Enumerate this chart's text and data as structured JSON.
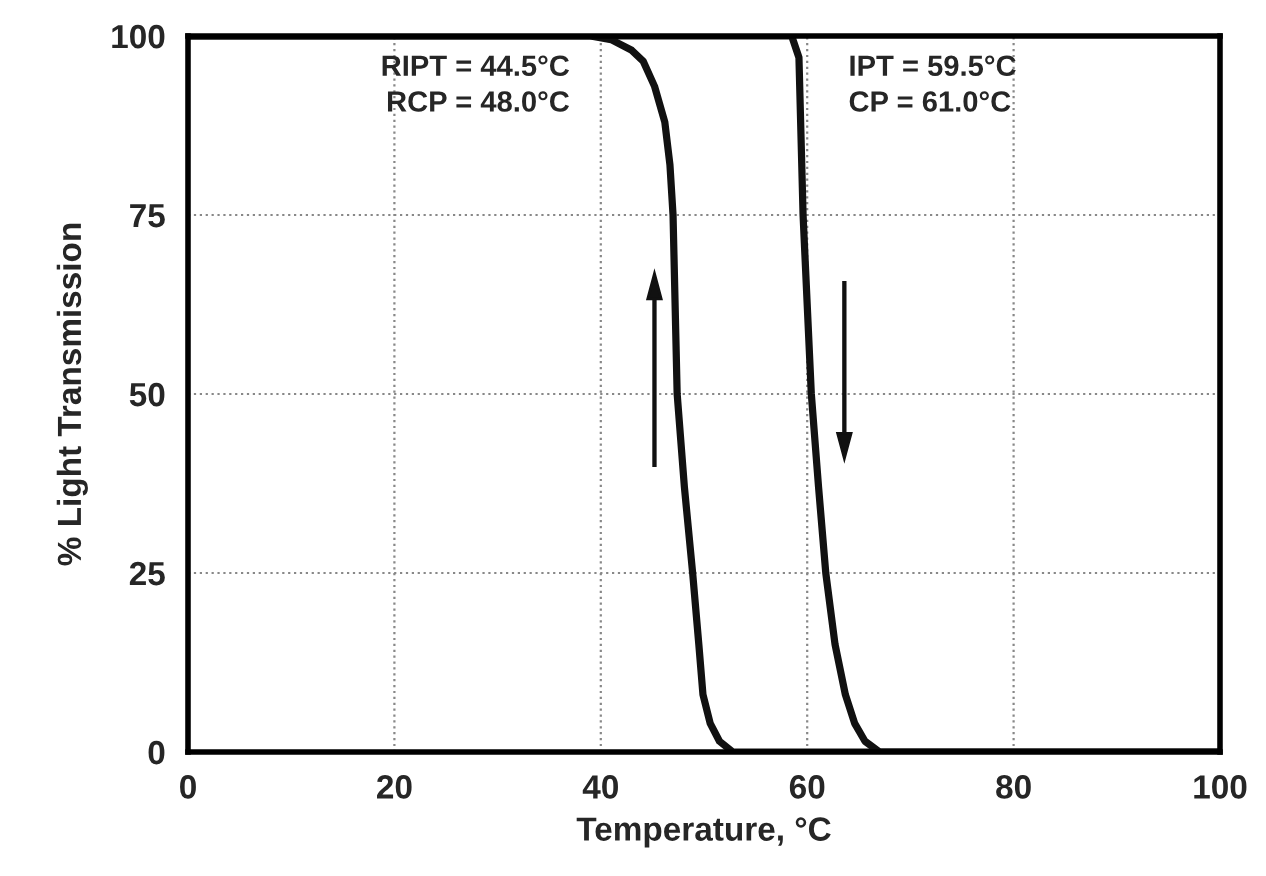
{
  "chart_data": {
    "type": "line",
    "xlabel": "Temperature, °C",
    "ylabel": "% Light Transmission",
    "series": [
      {
        "color": "#111111",
        "x": [
          0,
          39,
          41,
          43,
          44.1,
          45.2,
          46.2,
          46.7,
          47,
          47.4,
          48.1,
          48.9,
          49.5,
          49.9,
          50.6,
          51.5,
          52.8,
          100
        ],
        "values": [
          100,
          100,
          99.5,
          98,
          96.5,
          93,
          88,
          82,
          75,
          50,
          37,
          25,
          15,
          8,
          4,
          1.5,
          0,
          0
        ]
      },
      {
        "color": "#111111",
        "x": [
          0,
          58.5,
          59.2,
          59.6,
          60.4,
          61.1,
          61.8,
          62.7,
          63.7,
          64.6,
          65.6,
          67,
          100
        ],
        "values": [
          100,
          100,
          97,
          75,
          50,
          37,
          25,
          15,
          8,
          4,
          1.5,
          0,
          0
        ]
      }
    ],
    "annotations": [
      "RIPT = 44.5°C",
      "RCP = 48.0°C",
      "IPT = 59.5°C",
      "CP = 61.0°C"
    ],
    "xlim": [
      0,
      100
    ],
    "ylim": [
      0,
      100
    ],
    "xticks": [
      0,
      20,
      40,
      60,
      80,
      100
    ],
    "yticks": [
      0,
      25,
      50,
      75,
      100
    ],
    "grid": true,
    "legend": false,
    "marker": "none",
    "line_style": "solid"
  }
}
